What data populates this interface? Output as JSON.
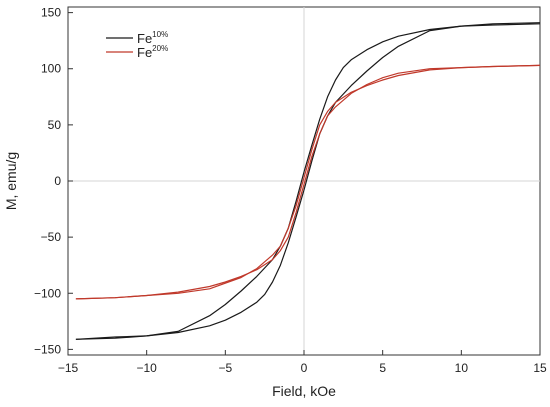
{
  "chart_data": {
    "type": "line",
    "xlabel": "Field, kOe",
    "ylabel": "M, emu/g",
    "xlim": [
      -15,
      15
    ],
    "ylim": [
      -155,
      155
    ],
    "x_ticks": [
      -15,
      -10,
      -5,
      0,
      5,
      10,
      15
    ],
    "y_ticks": [
      -150,
      -100,
      -50,
      0,
      50,
      100,
      150
    ],
    "zero_lines": true,
    "legend_placement": "top-left",
    "series": [
      {
        "name": "Fe",
        "name_sup": "10%",
        "color": "#1a1a1a",
        "branches": [
          {
            "x": [
              -14.5,
              -12,
              -10,
              -8,
              -6,
              -5,
              -4,
              -3,
              -2,
              -1.5,
              -1,
              -0.5,
              0,
              0.5,
              1,
              1.5,
              2,
              2.5,
              3,
              4,
              5,
              6,
              8,
              10,
              12,
              15
            ],
            "y": [
              -141,
              -140,
              -138,
              -134,
              -120,
              -110,
              -98,
              -85,
              -70,
              -58,
              -42,
              -18,
              8,
              32,
              55,
              75,
              90,
              101,
              108,
              117,
              124,
              129,
              135,
              138,
              139,
              140
            ]
          },
          {
            "x": [
              -14.5,
              -12,
              -10,
              -8,
              -6,
              -5,
              -4,
              -3,
              -2.5,
              -2,
              -1.5,
              -1,
              -0.5,
              0,
              0.5,
              1,
              1.5,
              2,
              3,
              4,
              5,
              6,
              8,
              10,
              12,
              15
            ],
            "y": [
              -141,
              -139,
              -138,
              -135,
              -129,
              -124,
              -117,
              -108,
              -101,
              -90,
              -75,
              -55,
              -32,
              -8,
              18,
              42,
              58,
              70,
              85,
              98,
              110,
              120,
              134,
              138,
              140,
              141
            ]
          }
        ]
      },
      {
        "name": "Fe",
        "name_sup": "20%",
        "color": "#c0392b",
        "branches": [
          {
            "x": [
              -14.5,
              -12,
              -10,
              -8,
              -6,
              -5,
              -4,
              -3,
              -2,
              -1.5,
              -1,
              -0.5,
              0,
              0.5,
              1,
              1.5,
              2,
              3,
              4,
              5,
              6,
              8,
              10,
              12,
              15
            ],
            "y": [
              -105,
              -104,
              -102,
              -99,
              -94,
              -90,
              -85,
              -79,
              -70,
              -62,
              -50,
              -28,
              -3,
              22,
              42,
              58,
              66,
              78,
              86,
              92,
              96,
              100,
              101,
              102,
              103
            ]
          },
          {
            "x": [
              -14.5,
              -12,
              -10,
              -8,
              -6,
              -4,
              -3,
              -2,
              -1.5,
              -1,
              -0.5,
              0,
              0.5,
              1,
              1.5,
              2,
              3,
              4,
              5,
              6,
              8,
              10,
              12,
              15
            ],
            "y": [
              -105,
              -104,
              -102,
              -100,
              -96,
              -86,
              -78,
              -66,
              -58,
              -42,
              -22,
              3,
              28,
              50,
              62,
              70,
              79,
              85,
              90,
              94,
              99,
              101,
              102,
              103
            ]
          }
        ]
      }
    ]
  }
}
